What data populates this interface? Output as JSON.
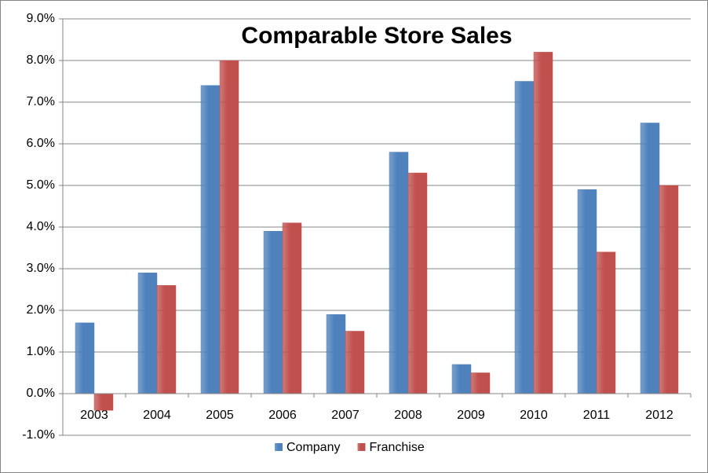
{
  "chart_data": {
    "type": "bar",
    "title": "Comparable Store Sales",
    "categories": [
      "2003",
      "2004",
      "2005",
      "2006",
      "2007",
      "2008",
      "2009",
      "2010",
      "2011",
      "2012"
    ],
    "series": [
      {
        "name": "Company",
        "color": "#4f81bd",
        "values": [
          1.7,
          2.9,
          7.4,
          3.9,
          1.9,
          5.8,
          0.7,
          7.5,
          4.9,
          6.5
        ]
      },
      {
        "name": "Franchise",
        "color": "#c0504d",
        "values": [
          -0.4,
          2.6,
          8.0,
          4.1,
          1.5,
          5.3,
          0.5,
          8.2,
          3.4,
          5.0
        ]
      }
    ],
    "ylim": [
      -1,
      9
    ],
    "yticks": [
      {
        "value": -1,
        "label": "-1.0%"
      },
      {
        "value": 0,
        "label": "0.0%"
      },
      {
        "value": 1,
        "label": "1.0%"
      },
      {
        "value": 2,
        "label": "2.0%"
      },
      {
        "value": 3,
        "label": "3.0%"
      },
      {
        "value": 4,
        "label": "4.0%"
      },
      {
        "value": 5,
        "label": "5.0%"
      },
      {
        "value": 6,
        "label": "6.0%"
      },
      {
        "value": 7,
        "label": "7.0%"
      },
      {
        "value": 8,
        "label": "8.0%"
      },
      {
        "value": 9,
        "label": "9.0%"
      }
    ],
    "grid": true,
    "legend": "bottom"
  }
}
